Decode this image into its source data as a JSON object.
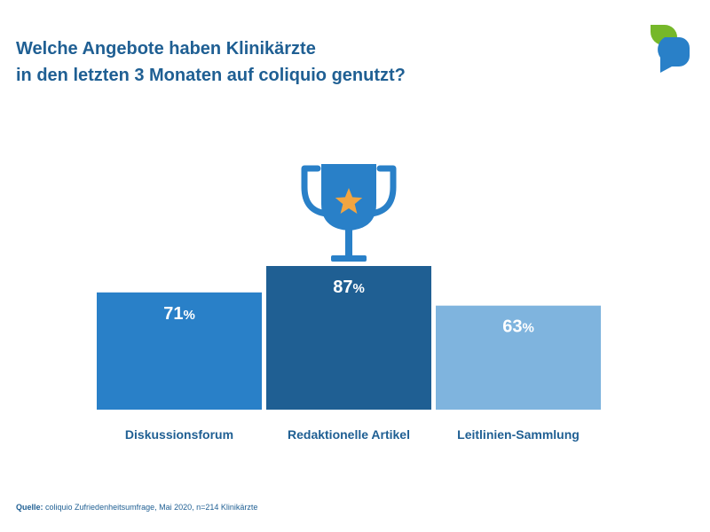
{
  "header": {
    "title_line_1": "Welche Angebote haben Klinikärzte",
    "title_line_2": "in den letzten 3 Monaten auf coliquio genutzt?",
    "logo_icon": "coliquio-speech-leaf-icon"
  },
  "chart_data": {
    "type": "bar",
    "categories": [
      "Diskussionsforum",
      "Redaktionelle Artikel",
      "Leitlinien-Sammlung"
    ],
    "values": [
      71,
      87,
      63
    ],
    "value_suffix": "%",
    "ylim": [
      0,
      100
    ],
    "colors": [
      "#2980c8",
      "#1f5f93",
      "#7fb4de"
    ],
    "highlight_icon": "trophy-star-icon",
    "highlight_index": 1
  },
  "footer": {
    "source_label": "Quelle:",
    "source_text": "coliquio Zufriedenheitsumfrage, Mai 2020, n=214 Klinikärzte"
  },
  "colors": {
    "title": "#1f5f93",
    "trophy": "#2980c8",
    "star": "#f2a541",
    "logo_green": "#76b82a",
    "logo_blue": "#2980c8"
  }
}
